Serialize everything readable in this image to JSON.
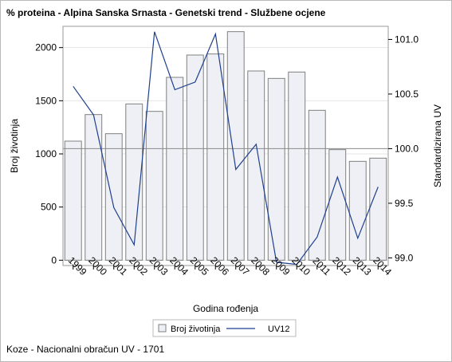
{
  "title": "% proteina - Alpina Sanska Srnasta - Genetski trend - Službene ocjene",
  "footnote": "Koze - Nacionalni obračun UV - 1701",
  "chart_data": {
    "type": "bar+line",
    "categories": [
      "1999",
      "2000",
      "2001",
      "2002",
      "2003",
      "2004",
      "2005",
      "2006",
      "2007",
      "2008",
      "2009",
      "2010",
      "2011",
      "2012",
      "2013",
      "2014"
    ],
    "series": [
      {
        "name": "Broj životinja",
        "kind": "bar",
        "axis": "left",
        "color": "#eef0f5",
        "stroke": "#7f7f7f",
        "values": [
          1120,
          1370,
          1190,
          1470,
          1400,
          1720,
          1930,
          1940,
          2150,
          1780,
          1710,
          1770,
          1410,
          1040,
          930,
          960
        ]
      },
      {
        "name": "UV12",
        "kind": "line",
        "axis": "right",
        "color": "#1f3f8f",
        "values": [
          100.57,
          100.31,
          99.46,
          99.12,
          101.07,
          100.54,
          100.61,
          101.05,
          99.81,
          100.04,
          98.96,
          98.94,
          99.19,
          99.74,
          99.18,
          99.65
        ]
      }
    ],
    "xlabel": "Godina rođenja",
    "ylabel_left": "Broj životinja",
    "ylabel_right": "Standardizirana UV",
    "ylim_left": [
      -50,
      2200
    ],
    "ylim_right": [
      98.93,
      101.12
    ],
    "yticks_left": [
      0,
      500,
      1000,
      1500,
      2000
    ],
    "yticks_right": [
      99.0,
      99.5,
      100.0,
      100.5,
      101.0
    ],
    "ytick_labels_right": [
      "99.0",
      "99.5",
      "100.0",
      "100.5",
      "101.0"
    ],
    "reference_line_right": 100.0,
    "grid": true,
    "legend": "bottom-center"
  }
}
